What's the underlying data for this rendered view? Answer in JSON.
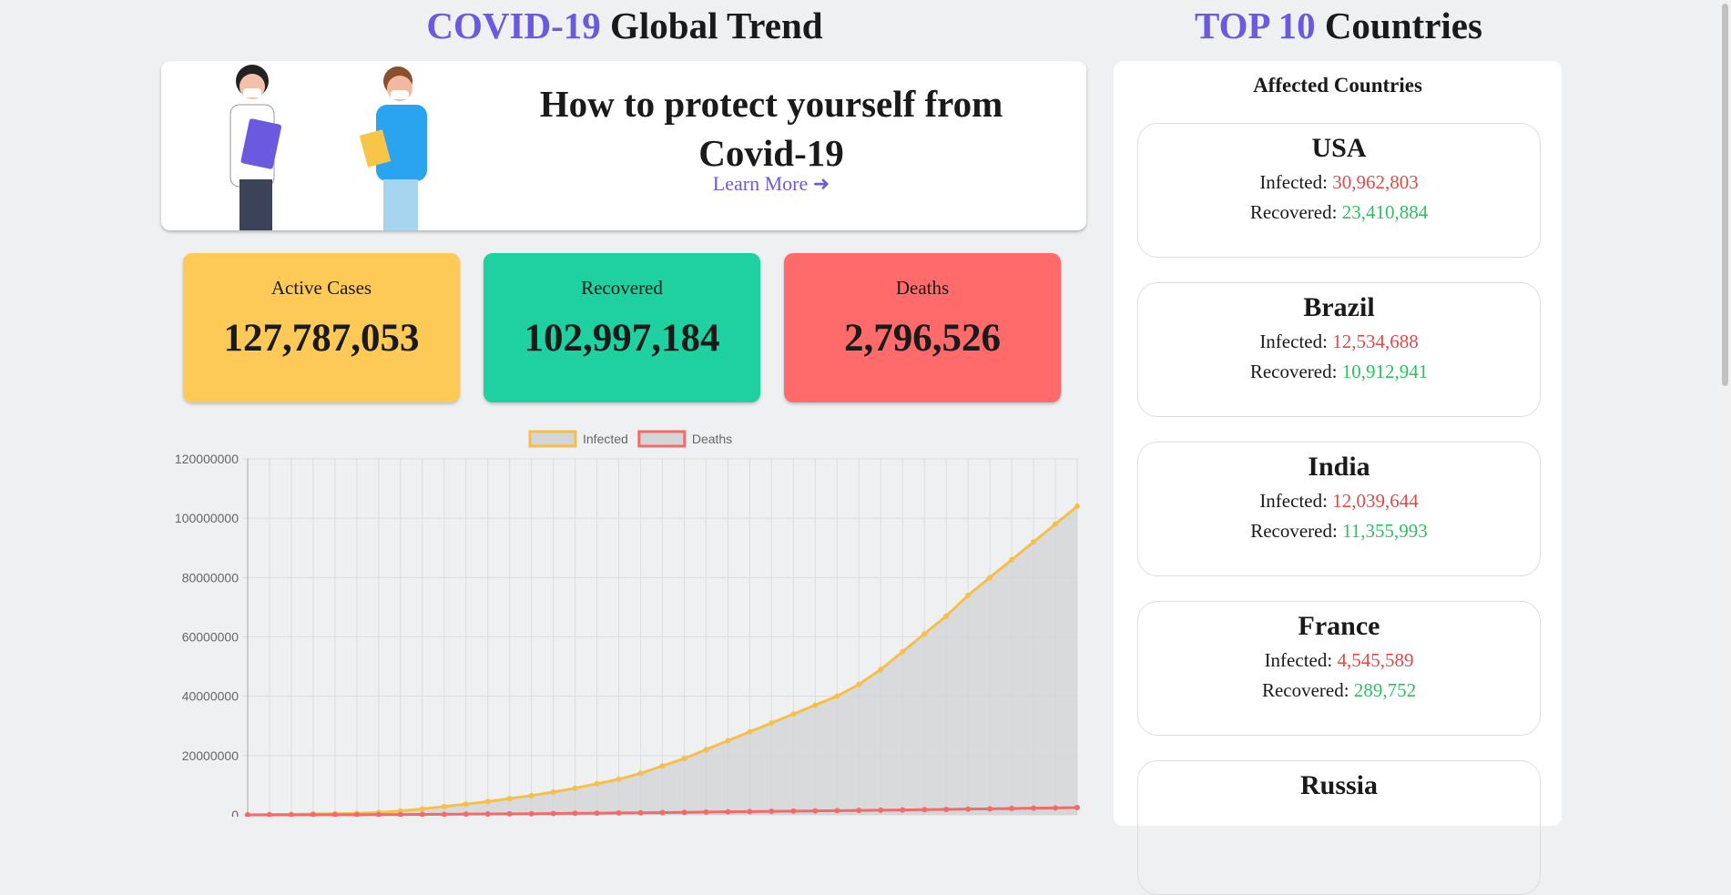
{
  "header": {
    "left_title": {
      "accent": "COVID-19",
      "rest": "Global Trend"
    },
    "right_title": {
      "accent": "TOP 10",
      "rest": "Countries"
    }
  },
  "banner": {
    "heading": "How to protect yourself from Covid-19",
    "link": "Learn More"
  },
  "stats": [
    {
      "label": "Active Cases",
      "value": "127,787,053",
      "color": "#fdc957"
    },
    {
      "label": "Recovered",
      "value": "102,997,184",
      "color": "#1fd1a0"
    },
    {
      "label": "Deaths",
      "value": "2,796,526",
      "color": "#ff6b6b"
    }
  ],
  "countries": {
    "heading": "Affected Countries",
    "infected_label": "Infected:",
    "recovered_label": "Recovered:",
    "items": [
      {
        "name": "USA",
        "infected": "30,962,803",
        "recovered": "23,410,884"
      },
      {
        "name": "Brazil",
        "infected": "12,534,688",
        "recovered": "10,912,941"
      },
      {
        "name": "India",
        "infected": "12,039,644",
        "recovered": "11,355,993"
      },
      {
        "name": "France",
        "infected": "4,545,589",
        "recovered": "289,752"
      },
      {
        "name": "Russia"
      }
    ]
  },
  "chart_data": {
    "type": "line",
    "area": true,
    "grid": true,
    "legend": "top",
    "ylim": [
      0,
      120000000
    ],
    "yticks": [
      0,
      20000000,
      40000000,
      60000000,
      80000000,
      100000000,
      120000000
    ],
    "series": [
      {
        "name": "Infected",
        "color": "#f5c04a",
        "fill": "#d3d5d7",
        "values": [
          0,
          100000,
          200000,
          300000,
          400000,
          500000,
          800000,
          1300000,
          2000000,
          2800000,
          3600000,
          4500000,
          5500000,
          6500000,
          7700000,
          9000000,
          10500000,
          12000000,
          14000000,
          16500000,
          19000000,
          22000000,
          25000000,
          28000000,
          31000000,
          34000000,
          37000000,
          40000000,
          44000000,
          49000000,
          55000000,
          61000000,
          67000000,
          74000000,
          80000000,
          86000000,
          92000000,
          98000000,
          104000000
        ]
      },
      {
        "name": "Deaths",
        "color": "#f26b6b",
        "fill": "#d3d5d7",
        "values": [
          0,
          0,
          10000,
          20000,
          30000,
          50000,
          80000,
          120000,
          160000,
          200000,
          250000,
          300000,
          350000,
          400000,
          460000,
          520000,
          580000,
          640000,
          700000,
          780000,
          860000,
          940000,
          1020000,
          1100000,
          1180000,
          1260000,
          1340000,
          1420000,
          1500000,
          1580000,
          1660000,
          1750000,
          1850000,
          1950000,
          2050000,
          2150000,
          2250000,
          2350000,
          2450000
        ]
      }
    ]
  }
}
